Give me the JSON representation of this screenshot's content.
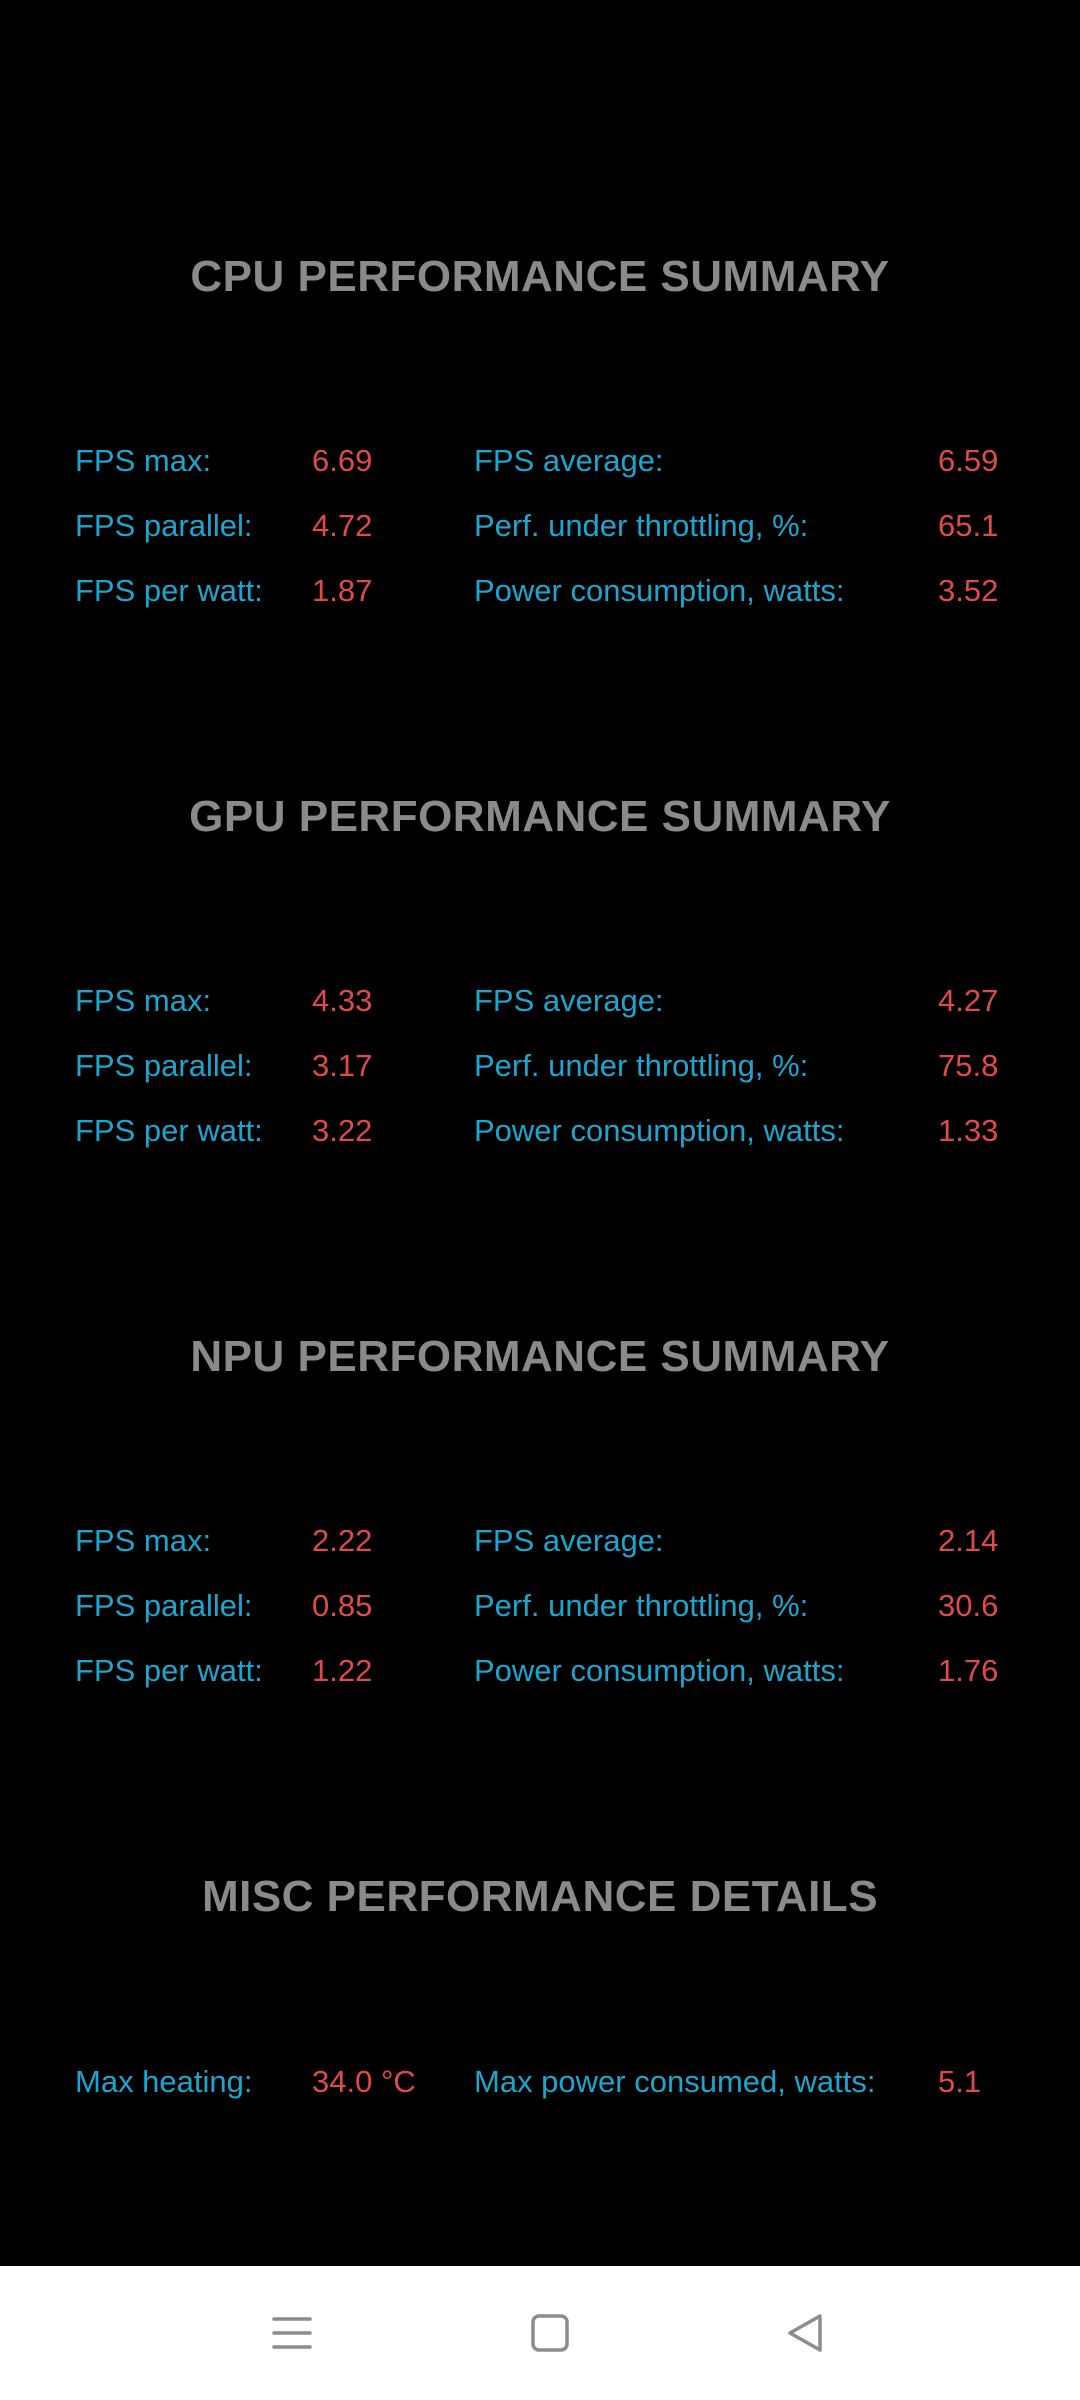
{
  "sections": [
    {
      "title": "CPU PERFORMANCE SUMMARY",
      "rows": [
        {
          "left_label": "FPS max:",
          "left_value": "6.69",
          "right_label": "FPS average:",
          "right_value": "6.59"
        },
        {
          "left_label": "FPS parallel:",
          "left_value": "4.72",
          "right_label": "Perf. under throttling, %:",
          "right_value": "65.1"
        },
        {
          "left_label": "FPS per watt:",
          "left_value": "1.87",
          "right_label": "Power consumption, watts:",
          "right_value": "3.52"
        }
      ]
    },
    {
      "title": "GPU PERFORMANCE SUMMARY",
      "rows": [
        {
          "left_label": "FPS max:",
          "left_value": "4.33",
          "right_label": "FPS average:",
          "right_value": "4.27"
        },
        {
          "left_label": "FPS parallel:",
          "left_value": "3.17",
          "right_label": "Perf. under throttling, %:",
          "right_value": "75.8"
        },
        {
          "left_label": "FPS per watt:",
          "left_value": "3.22",
          "right_label": "Power consumption, watts:",
          "right_value": "1.33"
        }
      ]
    },
    {
      "title": "NPU PERFORMANCE SUMMARY",
      "rows": [
        {
          "left_label": "FPS max:",
          "left_value": "2.22",
          "right_label": "FPS average:",
          "right_value": "2.14"
        },
        {
          "left_label": "FPS parallel:",
          "left_value": "0.85",
          "right_label": "Perf. under throttling, %:",
          "right_value": "30.6"
        },
        {
          "left_label": "FPS per watt:",
          "left_value": "1.22",
          "right_label": "Power consumption, watts:",
          "right_value": "1.76"
        }
      ]
    },
    {
      "title": "MISC PERFORMANCE DETAILS",
      "rows": [
        {
          "left_label": "Max heating:",
          "left_value": "34.0 °C",
          "right_label": "Max power consumed, watts:",
          "right_value": "5.1"
        }
      ]
    }
  ],
  "navbar": {
    "icons": [
      "menu-icon",
      "home-square-icon",
      "back-triangle-icon"
    ]
  },
  "colors": {
    "background": "#000000",
    "title": "#8a8a8a",
    "label": "#1aa6cf",
    "value": "#e04a4a",
    "navbar": "#ffffff",
    "nav_icon": "#8c8c8c"
  }
}
